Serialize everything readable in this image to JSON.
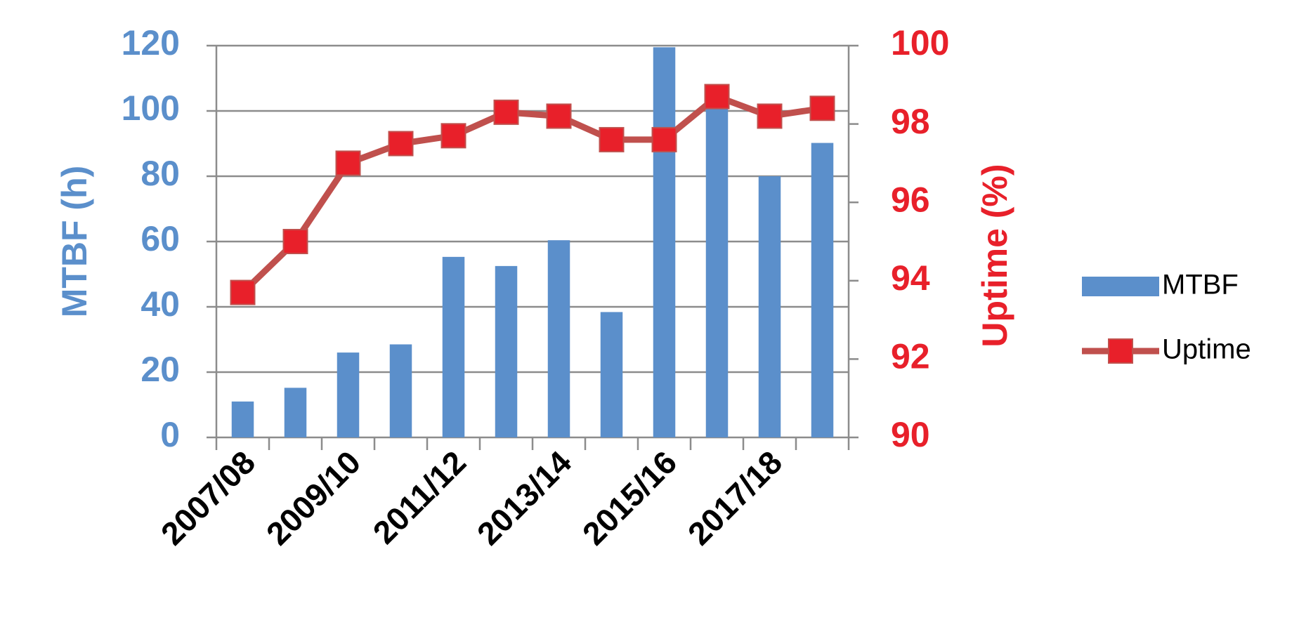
{
  "chart_data": {
    "type": "bar",
    "categories": [
      "2007/08",
      null,
      "2009/10",
      null,
      "2011/12",
      null,
      "2013/14",
      null,
      "2015/16",
      null,
      "2017/18",
      null
    ],
    "series": [
      {
        "name": "MTBF",
        "type": "bar",
        "axis": "y",
        "color": "#5b8fcb",
        "values": [
          11,
          15.2,
          26,
          28.5,
          55.3,
          52.5,
          60.4,
          38.4,
          119.5,
          103,
          80,
          90.2
        ]
      },
      {
        "name": "Uptime",
        "type": "line",
        "axis": "y2",
        "color": "#c0504d",
        "marker_color": "#e8202a",
        "values": [
          93.7,
          95,
          97,
          97.5,
          97.7,
          98.3,
          98.2,
          97.6,
          97.6,
          98.7,
          98.2,
          98.4
        ]
      }
    ],
    "y_label": "MTBF (h)",
    "y2_label": "Uptime (%)",
    "ylim": [
      0,
      120
    ],
    "yticks": [
      0,
      20,
      40,
      60,
      80,
      100,
      120
    ],
    "y2lim": [
      90,
      100
    ],
    "y2ticks": [
      90,
      92,
      94,
      96,
      98,
      100
    ],
    "y_color": "#5b8fcb",
    "y2_color": "#e8202a",
    "grid": true,
    "legend": "right"
  }
}
